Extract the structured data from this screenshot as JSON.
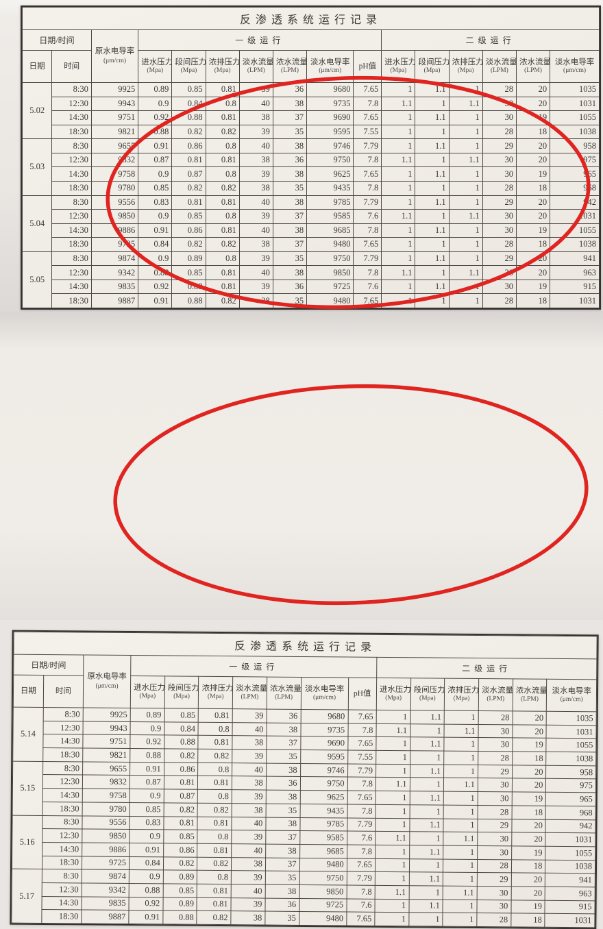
{
  "header": {
    "date_time": "日期/时间",
    "date": "日期",
    "time": "时间",
    "raw_conductivity": "原水电导率",
    "raw_conductivity_unit": "(μm/cm)",
    "stage1": "一级运行",
    "stage2": "二级运行",
    "ph_label": "pH值",
    "stage_columns": [
      {
        "label": "进水压力",
        "unit": "(Mpa)"
      },
      {
        "label": "段间压力",
        "unit": "(Mpa)"
      },
      {
        "label": "浓排压力",
        "unit": "(Mpa)"
      },
      {
        "label": "淡水流量",
        "unit": "(LPM)"
      },
      {
        "label": "浓水流量",
        "unit": "(LPM)"
      },
      {
        "label": "淡水电导率",
        "unit": "(μm/cm)"
      }
    ]
  },
  "annotation": {
    "circle_color": "#e02420"
  },
  "tables": [
    {
      "title": "反渗透系统运行记录",
      "groups": [
        {
          "date": "5.02",
          "rows": [
            [
              "8:30",
              "9925",
              "0.89",
              "0.85",
              "0.81",
              "39",
              "36",
              "9680",
              "7.65",
              "1",
              "1.1",
              "1",
              "28",
              "20",
              "1035"
            ],
            [
              "12:30",
              "9943",
              "0.9",
              "0.84",
              "0.8",
              "40",
              "38",
              "9735",
              "7.8",
              "1.1",
              "1",
              "1.1",
              "30",
              "20",
              "1031"
            ],
            [
              "14:30",
              "9751",
              "0.92",
              "0.88",
              "0.81",
              "38",
              "37",
              "9690",
              "7.65",
              "1",
              "1.1",
              "1",
              "30",
              "19",
              "1055"
            ],
            [
              "18:30",
              "9821",
              "0.88",
              "0.82",
              "0.82",
              "39",
              "35",
              "9595",
              "7.55",
              "1",
              "1",
              "1",
              "28",
              "18",
              "1038"
            ]
          ]
        },
        {
          "date": "5.03",
          "rows": [
            [
              "8:30",
              "9655",
              "0.91",
              "0.86",
              "0.8",
              "40",
              "38",
              "9746",
              "7.79",
              "1",
              "1.1",
              "1",
              "29",
              "20",
              "958"
            ],
            [
              "12:30",
              "9832",
              "0.87",
              "0.81",
              "0.81",
              "38",
              "36",
              "9750",
              "7.8",
              "1.1",
              "1",
              "1.1",
              "30",
              "20",
              "975"
            ],
            [
              "14:30",
              "9758",
              "0.9",
              "0.87",
              "0.8",
              "39",
              "38",
              "9625",
              "7.65",
              "1",
              "1.1",
              "1",
              "30",
              "19",
              "965"
            ],
            [
              "18:30",
              "9780",
              "0.85",
              "0.82",
              "0.82",
              "38",
              "35",
              "9435",
              "7.8",
              "1",
              "1",
              "1",
              "28",
              "18",
              "968"
            ]
          ]
        },
        {
          "date": "5.04",
          "rows": [
            [
              "8:30",
              "9556",
              "0.83",
              "0.81",
              "0.81",
              "40",
              "38",
              "9785",
              "7.79",
              "1",
              "1.1",
              "1",
              "29",
              "20",
              "942"
            ],
            [
              "12:30",
              "9850",
              "0.9",
              "0.85",
              "0.8",
              "39",
              "37",
              "9585",
              "7.6",
              "1.1",
              "1",
              "1.1",
              "30",
              "20",
              "1031"
            ],
            [
              "14:30",
              "9886",
              "0.91",
              "0.86",
              "0.81",
              "40",
              "38",
              "9685",
              "7.8",
              "1",
              "1.1",
              "1",
              "30",
              "19",
              "1055"
            ],
            [
              "18:30",
              "9725",
              "0.84",
              "0.82",
              "0.82",
              "38",
              "37",
              "9480",
              "7.65",
              "1",
              "1",
              "1",
              "28",
              "18",
              "1038"
            ]
          ]
        },
        {
          "date": "5.05",
          "rows": [
            [
              "8:30",
              "9874",
              "0.9",
              "0.89",
              "0.8",
              "39",
              "35",
              "9750",
              "7.79",
              "1",
              "1.1",
              "1",
              "29",
              "20",
              "941"
            ],
            [
              "12:30",
              "9342",
              "0.88",
              "0.85",
              "0.81",
              "40",
              "38",
              "9850",
              "7.8",
              "1.1",
              "1",
              "1.1",
              "30",
              "20",
              "963"
            ],
            [
              "14:30",
              "9835",
              "0.92",
              "0.89",
              "0.81",
              "39",
              "36",
              "9725",
              "7.6",
              "1",
              "1.1",
              "1",
              "30",
              "19",
              "915"
            ],
            [
              "18:30",
              "9887",
              "0.91",
              "0.88",
              "0.82",
              "38",
              "35",
              "9480",
              "7.65",
              "1",
              "1",
              "1",
              "28",
              "18",
              "1031"
            ]
          ]
        }
      ]
    },
    {
      "title": "反渗透系统运行记录",
      "groups": [
        {
          "date": "5.14",
          "rows": [
            [
              "8:30",
              "9925",
              "0.89",
              "0.85",
              "0.81",
              "39",
              "36",
              "9680",
              "7.65",
              "1",
              "1.1",
              "1",
              "28",
              "20",
              "1035"
            ],
            [
              "12:30",
              "9943",
              "0.9",
              "0.84",
              "0.8",
              "40",
              "38",
              "9735",
              "7.8",
              "1.1",
              "1",
              "1.1",
              "30",
              "20",
              "1031"
            ],
            [
              "14:30",
              "9751",
              "0.92",
              "0.88",
              "0.81",
              "38",
              "37",
              "9690",
              "7.65",
              "1",
              "1.1",
              "1",
              "30",
              "19",
              "1055"
            ],
            [
              "18:30",
              "9821",
              "0.88",
              "0.82",
              "0.82",
              "39",
              "35",
              "9595",
              "7.55",
              "1",
              "1",
              "1",
              "28",
              "18",
              "1038"
            ]
          ]
        },
        {
          "date": "5.15",
          "rows": [
            [
              "8:30",
              "9655",
              "0.91",
              "0.86",
              "0.8",
              "40",
              "38",
              "9746",
              "7.79",
              "1",
              "1.1",
              "1",
              "29",
              "20",
              "958"
            ],
            [
              "12:30",
              "9832",
              "0.87",
              "0.81",
              "0.81",
              "38",
              "36",
              "9750",
              "7.8",
              "1.1",
              "1",
              "1.1",
              "30",
              "20",
              "975"
            ],
            [
              "14:30",
              "9758",
              "0.9",
              "0.87",
              "0.8",
              "39",
              "38",
              "9625",
              "7.65",
              "1",
              "1.1",
              "1",
              "30",
              "19",
              "965"
            ],
            [
              "18:30",
              "9780",
              "0.85",
              "0.82",
              "0.82",
              "38",
              "35",
              "9435",
              "7.8",
              "1",
              "1",
              "1",
              "28",
              "18",
              "968"
            ]
          ]
        },
        {
          "date": "5.16",
          "rows": [
            [
              "8:30",
              "9556",
              "0.83",
              "0.81",
              "0.81",
              "40",
              "38",
              "9785",
              "7.79",
              "1",
              "1.1",
              "1",
              "29",
              "20",
              "942"
            ],
            [
              "12:30",
              "9850",
              "0.9",
              "0.85",
              "0.8",
              "39",
              "37",
              "9585",
              "7.6",
              "1.1",
              "1",
              "1.1",
              "30",
              "20",
              "1031"
            ],
            [
              "14:30",
              "9886",
              "0.91",
              "0.86",
              "0.81",
              "40",
              "38",
              "9685",
              "7.8",
              "1",
              "1.1",
              "1",
              "30",
              "19",
              "1055"
            ],
            [
              "18:30",
              "9725",
              "0.84",
              "0.82",
              "0.82",
              "38",
              "37",
              "9480",
              "7.65",
              "1",
              "1",
              "1",
              "28",
              "18",
              "1038"
            ]
          ]
        },
        {
          "date": "5.17",
          "rows": [
            [
              "8:30",
              "9874",
              "0.9",
              "0.89",
              "0.8",
              "39",
              "35",
              "9750",
              "7.79",
              "1",
              "1.1",
              "1",
              "29",
              "20",
              "941"
            ],
            [
              "12:30",
              "9342",
              "0.88",
              "0.85",
              "0.81",
              "40",
              "38",
              "9850",
              "7.8",
              "1.1",
              "1",
              "1.1",
              "30",
              "20",
              "963"
            ],
            [
              "14:30",
              "9835",
              "0.92",
              "0.89",
              "0.81",
              "39",
              "36",
              "9725",
              "7.6",
              "1",
              "1.1",
              "1",
              "30",
              "19",
              "915"
            ],
            [
              "18:30",
              "9887",
              "0.91",
              "0.88",
              "0.82",
              "38",
              "35",
              "9480",
              "7.65",
              "1",
              "1",
              "1",
              "28",
              "18",
              "1031"
            ]
          ]
        }
      ]
    }
  ]
}
